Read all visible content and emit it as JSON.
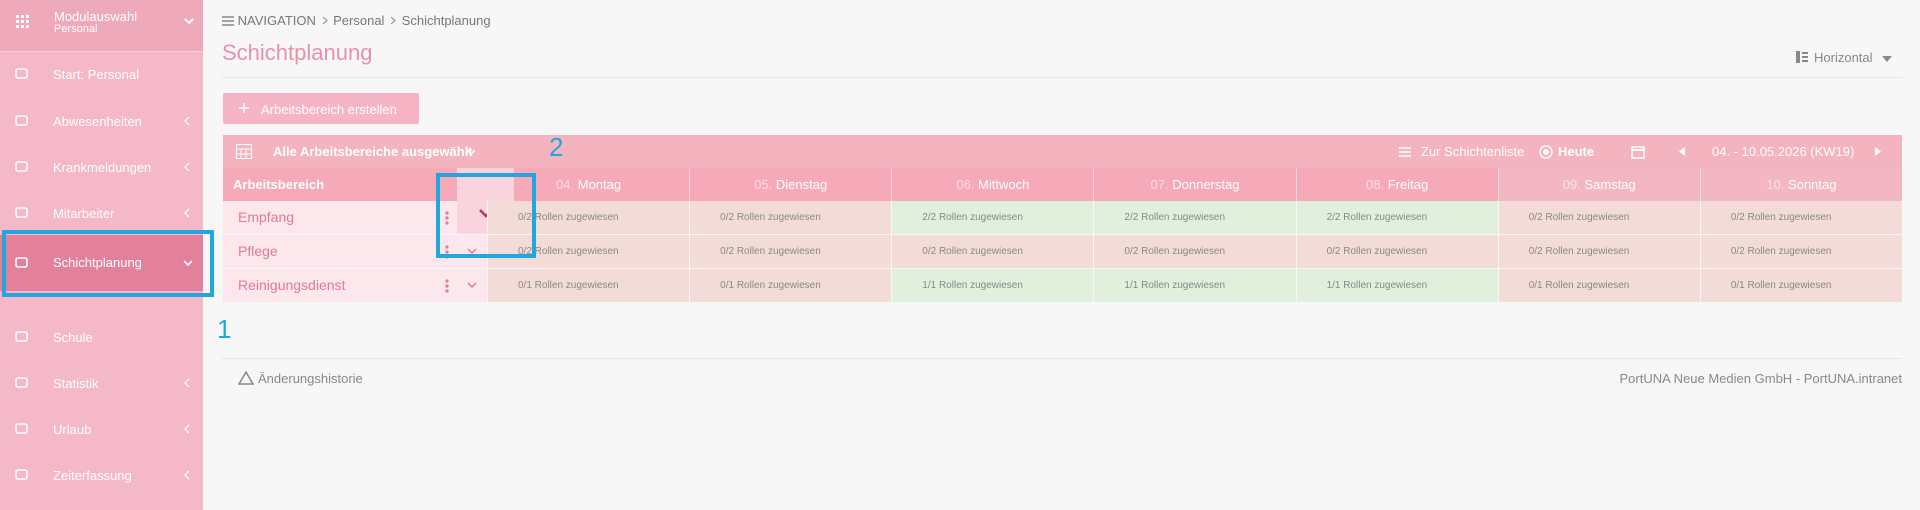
{
  "sidebar": {
    "module": {
      "title": "Modulauswahl",
      "subtitle": "Personal"
    },
    "items": [
      "Start: Personal",
      "Abwesenheiten",
      "Krankmeldungen",
      "Mitarbeiter",
      "Schichtplanung",
      "Schule",
      "Statistik",
      "Urlaub",
      "Zeiterfassung"
    ]
  },
  "breadcrumb": [
    "NAVIGATION",
    "Personal",
    "Schichtplanung"
  ],
  "page_title": "Schichtplanung",
  "view_toggle": "Horizontal",
  "create_button": "Arbeitsbereich erstellen",
  "toolbar": {
    "filter": "Alle Arbeitsbereiche ausgewählt",
    "shift_list": "Zur Schichtenliste",
    "today": "Heute",
    "range": "04. - 10.05.2026 (KW19)"
  },
  "table": {
    "header": "Arbeitsbereich",
    "days": [
      {
        "date": "04.",
        "day": "Montag"
      },
      {
        "date": "05.",
        "day": "Dienstag"
      },
      {
        "date": "06.",
        "day": "Mittwoch"
      },
      {
        "date": "07.",
        "day": "Donnerstag"
      },
      {
        "date": "08.",
        "day": "Freitag"
      },
      {
        "date": "09.",
        "day": "Samstag"
      },
      {
        "date": "10.",
        "day": "Sonntag"
      }
    ],
    "rows": [
      {
        "name": "Empfang",
        "cells": [
          {
            "text": "0/2 Rollen zugewiesen",
            "color": "#f3dcd7"
          },
          {
            "text": "0/2 Rollen zugewiesen",
            "color": "#f3dcd7"
          },
          {
            "text": "2/2 Rollen zugewiesen",
            "color": "#e0f0dc"
          },
          {
            "text": "2/2 Rollen zugewiesen",
            "color": "#e0f0dc"
          },
          {
            "text": "2/2 Rollen zugewiesen",
            "color": "#e0f0dc"
          },
          {
            "text": "0/2 Rollen zugewiesen",
            "color": "#f3dcd7"
          },
          {
            "text": "0/2 Rollen zugewiesen",
            "color": "#f3dcd7"
          }
        ]
      },
      {
        "name": "Pflege",
        "cells": [
          {
            "text": "0/2 Rollen zugewiesen",
            "color": "#f3dcd7"
          },
          {
            "text": "0/2 Rollen zugewiesen",
            "color": "#f3dcd7"
          },
          {
            "text": "0/2 Rollen zugewiesen",
            "color": "#f3dcd7"
          },
          {
            "text": "0/2 Rollen zugewiesen",
            "color": "#f3dcd7"
          },
          {
            "text": "0/2 Rollen zugewiesen",
            "color": "#f3dcd7"
          },
          {
            "text": "0/2 Rollen zugewiesen",
            "color": "#f3dcd7"
          },
          {
            "text": "0/2 Rollen zugewiesen",
            "color": "#f3dcd7"
          }
        ]
      },
      {
        "name": "Reinigungsdienst",
        "cells": [
          {
            "text": "0/1 Rollen zugewiesen",
            "color": "#f3dcd7"
          },
          {
            "text": "0/1 Rollen zugewiesen",
            "color": "#f3dcd7"
          },
          {
            "text": "1/1 Rollen zugewiesen",
            "color": "#e0f0dc"
          },
          {
            "text": "1/1 Rollen zugewiesen",
            "color": "#e0f0dc"
          },
          {
            "text": "1/1 Rollen zugewiesen",
            "color": "#e0f0dc"
          },
          {
            "text": "0/1 Rollen zugewiesen",
            "color": "#f3dcd7"
          },
          {
            "text": "0/1 Rollen zugewiesen",
            "color": "#f3dcd7"
          }
        ]
      }
    ]
  },
  "footer": {
    "history": "Änderungshistorie",
    "copyright": "PortUNA Neue Medien GmbH - PortUNA.intranet"
  },
  "annotations": [
    "1",
    "2"
  ]
}
